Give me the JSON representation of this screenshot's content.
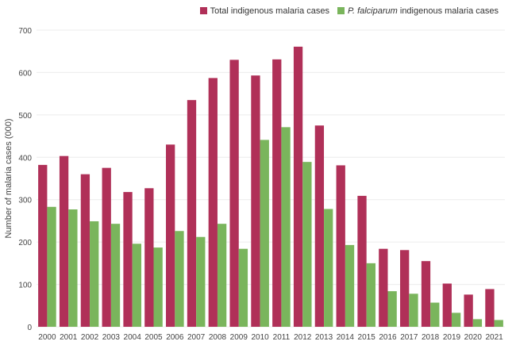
{
  "chart_data": {
    "type": "bar",
    "title": "",
    "xlabel": "",
    "ylabel": "Number of malaria cases (000)",
    "ylim": [
      0,
      700
    ],
    "yticks": [
      0,
      100,
      200,
      300,
      400,
      500,
      600,
      700
    ],
    "grid": true,
    "legend_position": "top-right",
    "categories": [
      "2000",
      "2001",
      "2002",
      "2003",
      "2004",
      "2005",
      "2006",
      "2007",
      "2008",
      "2009",
      "2010",
      "2011",
      "2012",
      "2013",
      "2014",
      "2015",
      "2016",
      "2017",
      "2018",
      "2019",
      "2020",
      "2021"
    ],
    "series": [
      {
        "name": "Total indigenous malaria cases",
        "legend_italic": "",
        "legend_rest": "Total indigenous malaria cases",
        "color": "#b03058",
        "values": [
          382,
          403,
          360,
          375,
          318,
          327,
          430,
          535,
          587,
          630,
          593,
          631,
          661,
          475,
          381,
          309,
          184,
          181,
          155,
          102,
          76,
          89
        ]
      },
      {
        "name": "P. falciparum indigenous malaria cases",
        "legend_italic": "P. falciparum",
        "legend_rest": " indigenous malaria cases",
        "color": "#7ab55c",
        "values": [
          283,
          277,
          249,
          243,
          196,
          187,
          226,
          212,
          243,
          184,
          441,
          471,
          389,
          278,
          193,
          150,
          84,
          78,
          57,
          33,
          18,
          16
        ]
      }
    ]
  }
}
